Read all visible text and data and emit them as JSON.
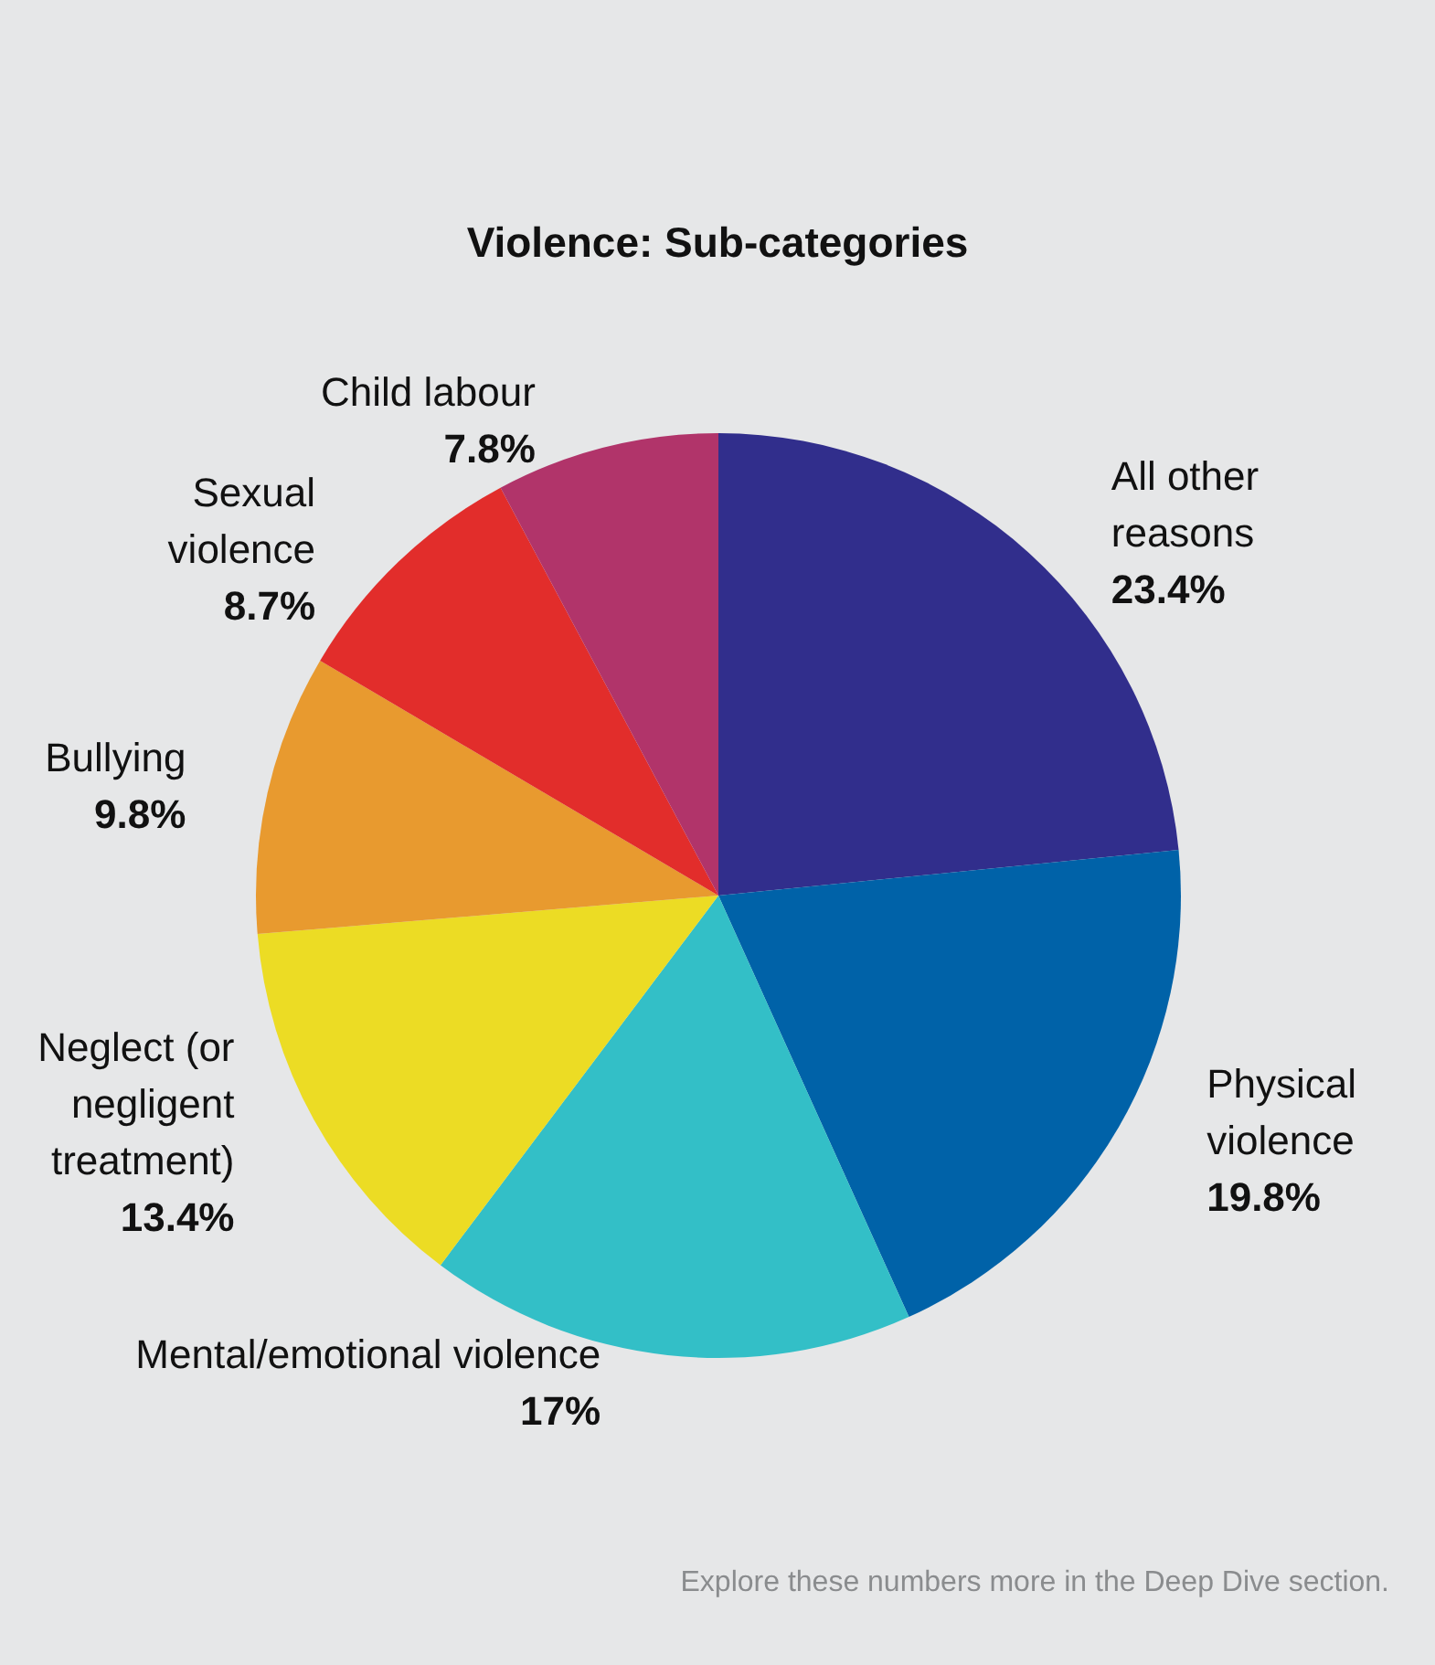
{
  "chart_data": {
    "type": "pie",
    "title": "Violence: Sub-categories",
    "categories": [
      "All other reasons",
      "Physical violence",
      "Mental/emotional violence",
      "Neglect (or negligent treatment)",
      "Bullying",
      "Sexual violence",
      "Child labour"
    ],
    "values": [
      23.4,
      19.8,
      17,
      13.4,
      9.8,
      8.7,
      7.8
    ],
    "value_labels": [
      "23.4%",
      "19.8%",
      "17%",
      "13.4%",
      "9.8%",
      "8.7%",
      "7.8%"
    ],
    "colors": [
      "#312e8c",
      "#0062a8",
      "#33bfc7",
      "#ecdc24",
      "#e89a2f",
      "#e22d2b",
      "#b1346a"
    ],
    "annotations": [
      "Explore these numbers more in the Deep Dive section."
    ],
    "legend": false
  }
}
